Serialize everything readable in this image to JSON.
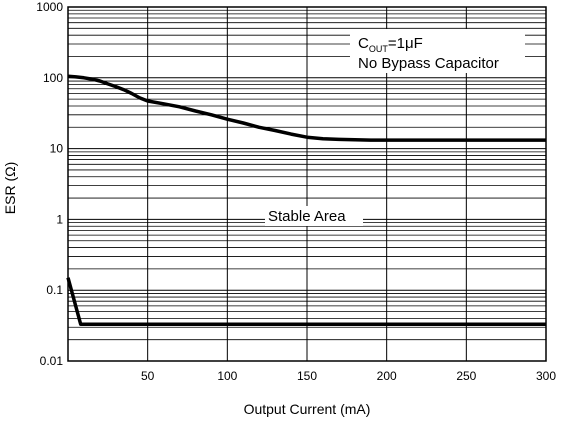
{
  "chart_data": {
    "type": "line",
    "xlabel": "Output Current (mA)",
    "ylabel": "ESR (Ω)",
    "xlim": [
      0,
      300
    ],
    "ylim": [
      0.01,
      1000
    ],
    "yscale": "log",
    "grid": true,
    "x_ticks": [
      "50",
      "100",
      "150",
      "200",
      "250",
      "300"
    ],
    "y_ticks": [
      "0.01",
      "0.1",
      "1",
      "10",
      "100",
      "1000"
    ],
    "annotations": {
      "condition_main": "C",
      "condition_sub": "OUT",
      "condition_rest": "=1μF",
      "condition_line2": "No Bypass Capacitor",
      "region": "Stable Area"
    },
    "series": [
      {
        "x": [
          0,
          5,
          10,
          15,
          20,
          25,
          30,
          35,
          40,
          45,
          50,
          60,
          70,
          80,
          90,
          100,
          110,
          120,
          130,
          140,
          150,
          160,
          170,
          180,
          190,
          200,
          250,
          300
        ],
        "y": [
          105,
          103,
          100,
          96,
          90,
          82,
          75,
          68,
          60,
          52,
          47,
          43,
          39,
          34,
          30,
          26,
          23,
          20,
          18,
          16,
          14.5,
          13.8,
          13.5,
          13.3,
          13.2,
          13.2,
          13.2,
          13.2
        ]
      },
      {
        "x": [
          0,
          8,
          300
        ],
        "y": [
          0.15,
          0.033,
          0.033
        ]
      }
    ]
  }
}
